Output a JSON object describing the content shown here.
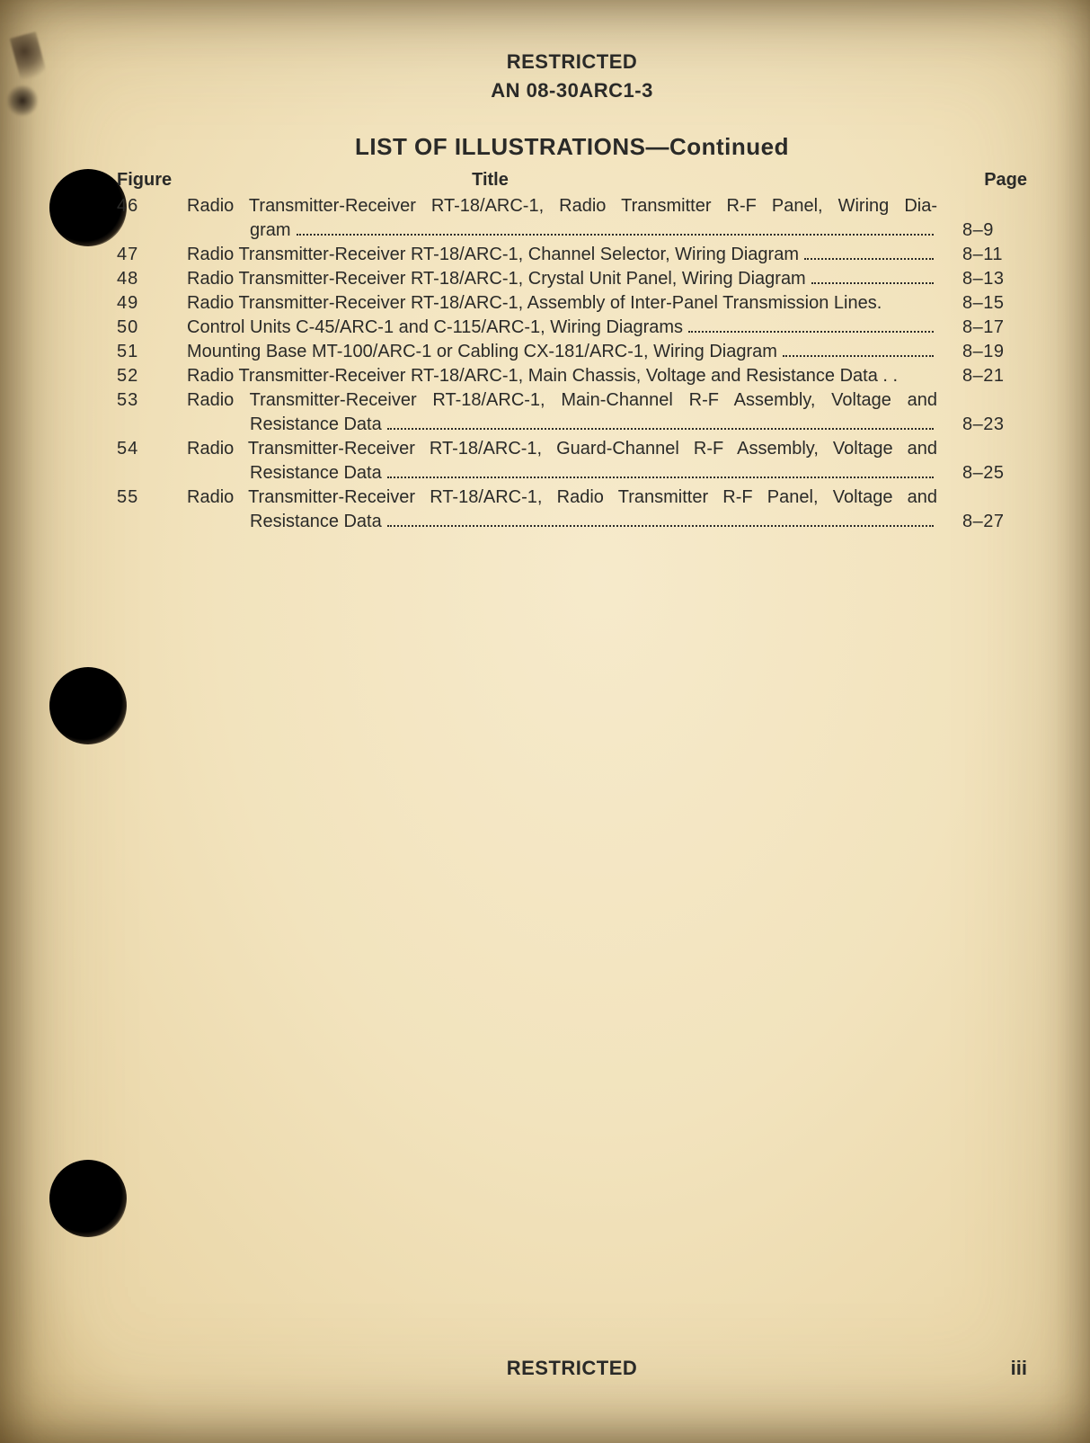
{
  "header": {
    "classification": "RESTRICTED",
    "doc_number": "AN 08-30ARC1-3"
  },
  "section": {
    "title_main": "LIST OF ILLUSTRATIONS",
    "title_suffix": "—Continued"
  },
  "column_headers": {
    "figure": "Figure",
    "title": "Title",
    "page": "Page"
  },
  "entries": [
    {
      "figure": "46",
      "line1": "Radio Transmitter-Receiver RT-18/ARC-1, Radio Transmitter R-F Panel, Wiring Dia-",
      "line2": "gram",
      "page": "8–9",
      "multiline": true
    },
    {
      "figure": "47",
      "line1": "Radio Transmitter-Receiver RT-18/ARC-1, Channel Selector, Wiring Diagram",
      "page": "8–11",
      "multiline": false
    },
    {
      "figure": "48",
      "line1": "Radio Transmitter-Receiver RT-18/ARC-1, Crystal Unit Panel, Wiring Diagram",
      "page": "8–13",
      "multiline": false
    },
    {
      "figure": "49",
      "line1": "Radio Transmitter-Receiver RT-18/ARC-1, Assembly of Inter-Panel Transmission Lines.",
      "page": "8–15",
      "multiline": false,
      "no_leader": true
    },
    {
      "figure": "50",
      "line1": "Control Units C-45/ARC-1 and C-115/ARC-1, Wiring Diagrams",
      "page": "8–17",
      "multiline": false
    },
    {
      "figure": "51",
      "line1": "Mounting Base MT-100/ARC-1 or Cabling CX-181/ARC-1, Wiring Diagram",
      "page": "8–19",
      "multiline": false
    },
    {
      "figure": "52",
      "line1": "Radio Transmitter-Receiver RT-18/ARC-1, Main Chassis, Voltage and Resistance Data . .",
      "page": "8–21",
      "multiline": false,
      "no_leader": true
    },
    {
      "figure": "53",
      "line1": "Radio Transmitter-Receiver RT-18/ARC-1, Main-Channel R-F Assembly, Voltage and",
      "line2": "Resistance Data",
      "page": "8–23",
      "multiline": true
    },
    {
      "figure": "54",
      "line1": "Radio Transmitter-Receiver RT-18/ARC-1, Guard-Channel R-F Assembly, Voltage and",
      "line2": "Resistance Data",
      "page": "8–25",
      "multiline": true
    },
    {
      "figure": "55",
      "line1": "Radio Transmitter-Receiver RT-18/ARC-1, Radio Transmitter R-F Panel, Voltage and",
      "line2": "Resistance Data",
      "page": "8–27",
      "multiline": true
    }
  ],
  "footer": {
    "classification": "RESTRICTED",
    "page_number": "iii"
  },
  "colors": {
    "paper": "#f3e6c4",
    "ink": "#2a2a28",
    "hole": "#000000"
  }
}
